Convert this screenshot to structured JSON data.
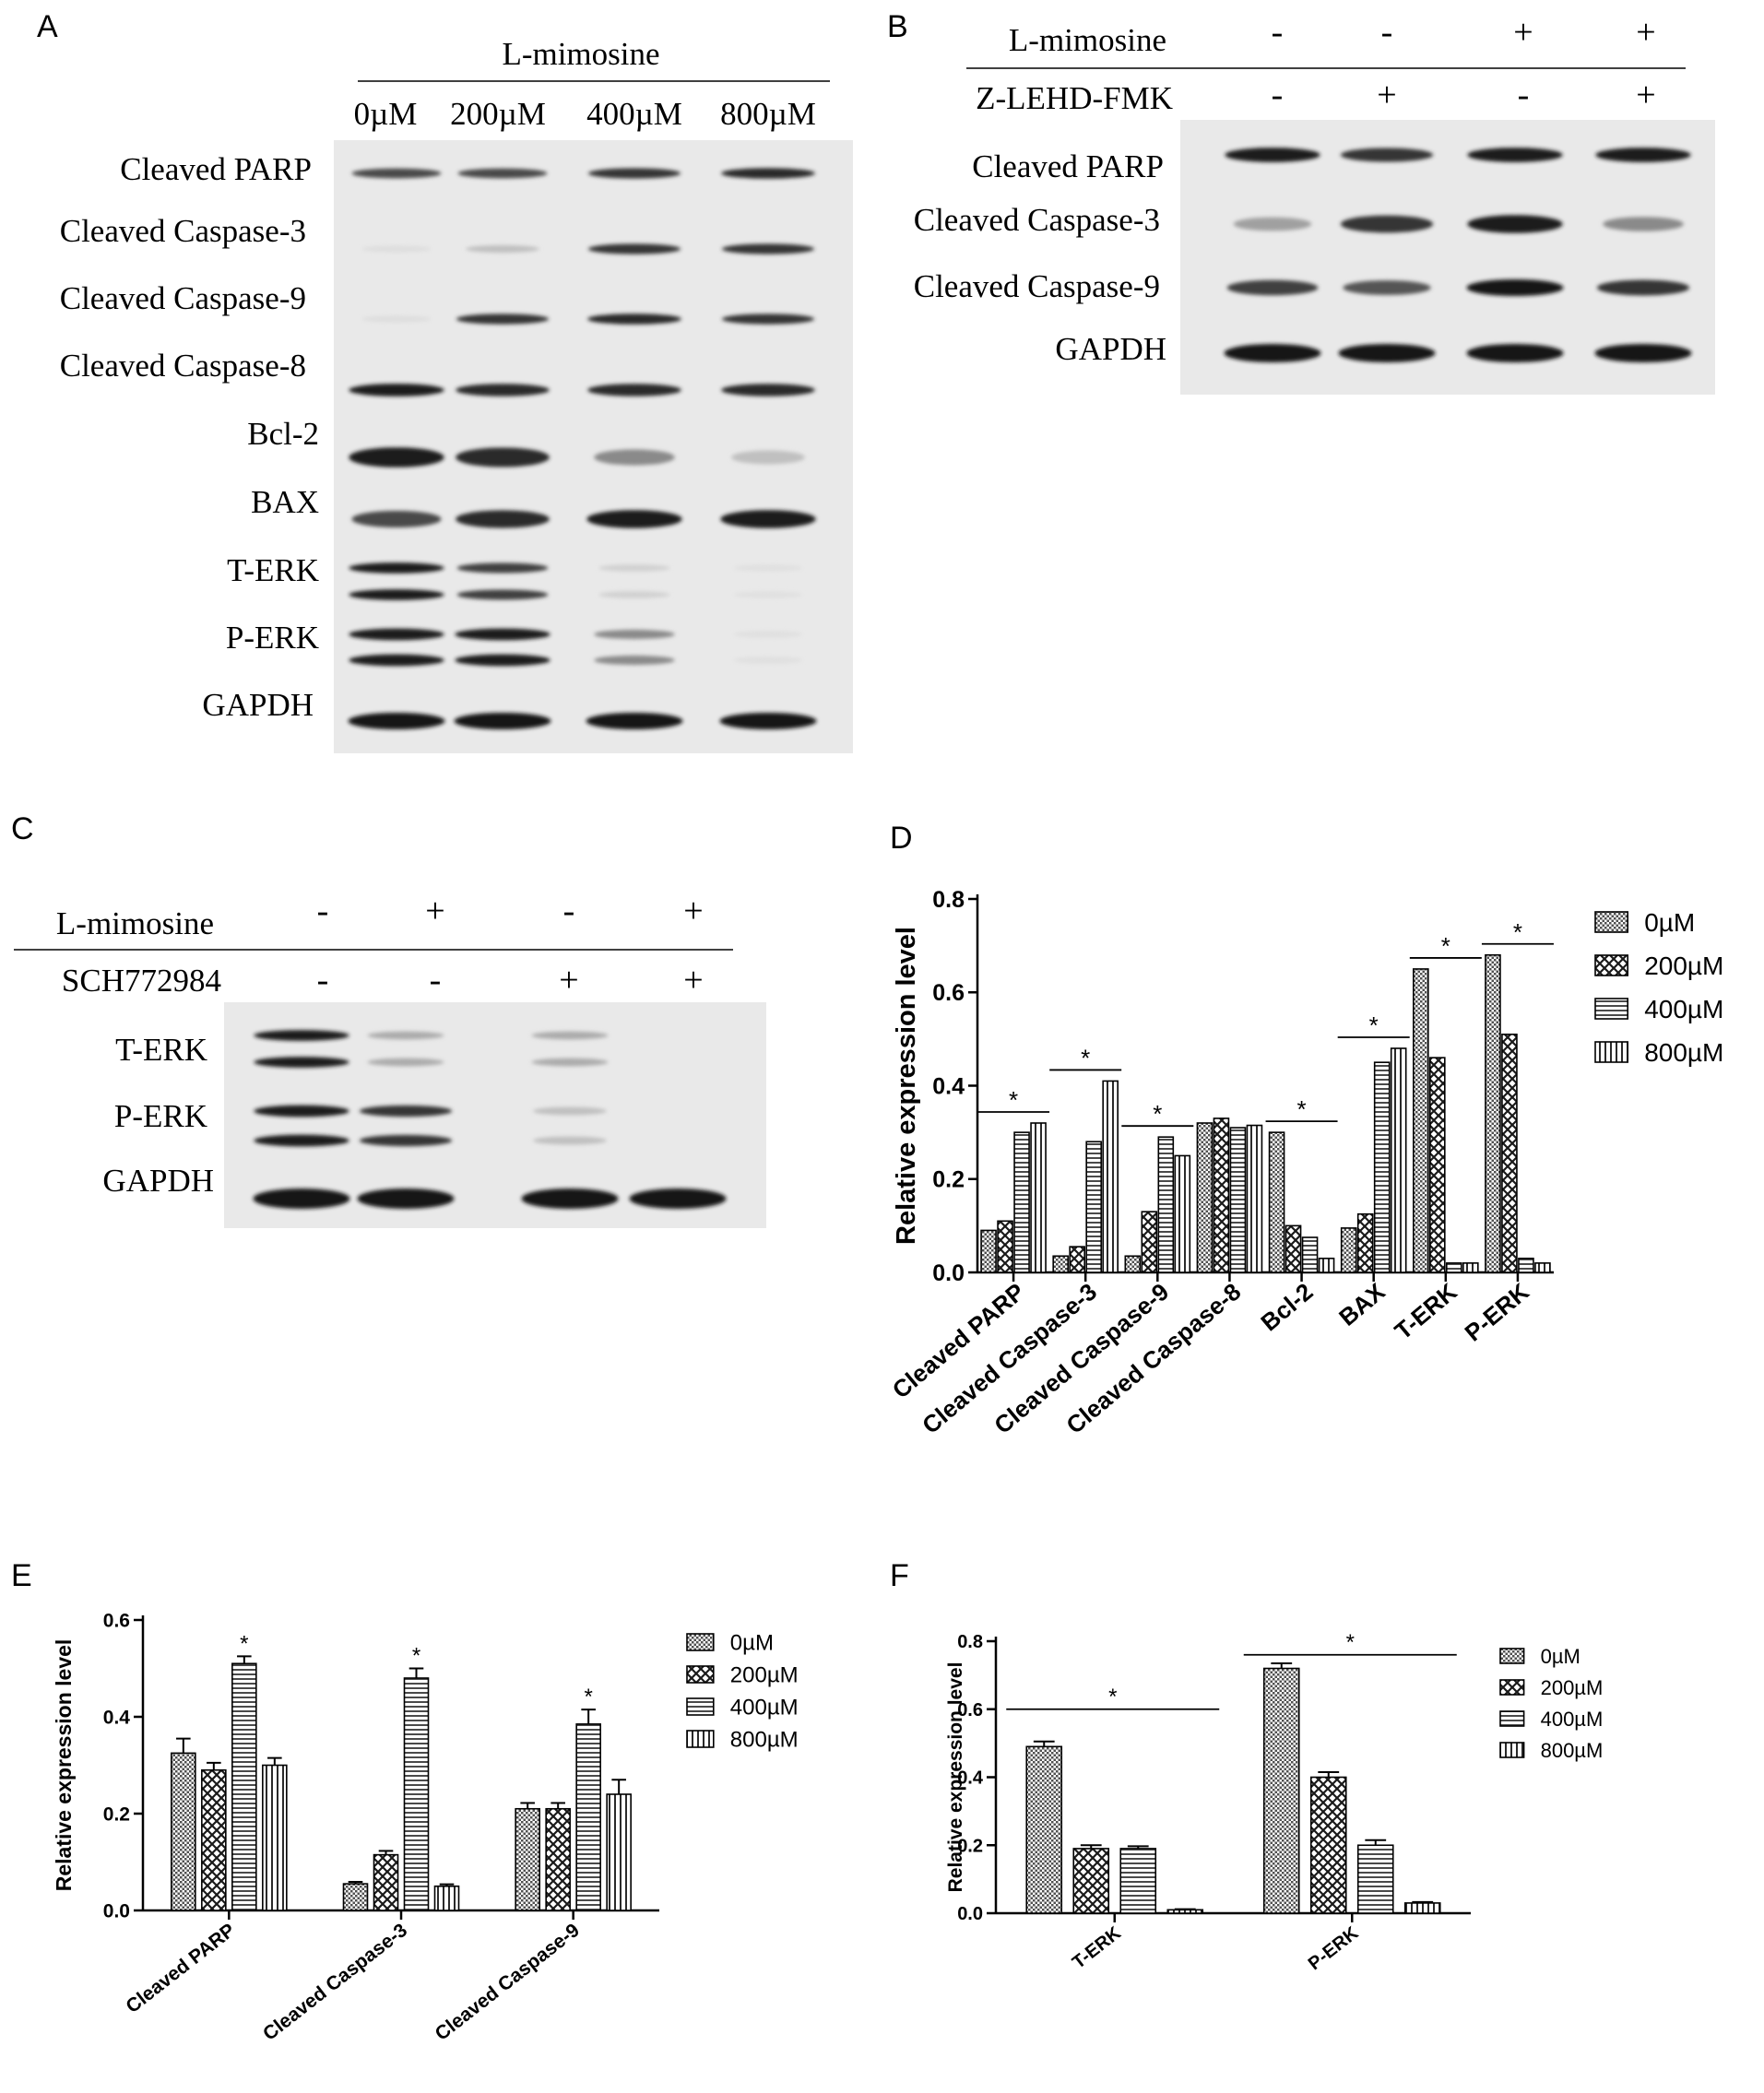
{
  "panels": {
    "A": {
      "letter": "A",
      "treatment": "L-mimosine",
      "lanes": [
        "0µM",
        "200µM",
        "400µM",
        "800µM"
      ],
      "bands": [
        "Cleaved  PARP",
        "Cleaved Caspase-3",
        "Cleaved Caspase-9",
        "Cleaved Caspase-8",
        "Bcl-2",
        "BAX",
        "T-ERK",
        "P-ERK",
        "GAPDH"
      ]
    },
    "B": {
      "letter": "B",
      "rows": [
        {
          "label": "L-mimosine",
          "signs": [
            "-",
            "-",
            "+",
            "+"
          ]
        },
        {
          "label": "Z-LEHD-FMK",
          "signs": [
            "-",
            "+",
            "-",
            "+"
          ]
        }
      ],
      "bands": [
        "Cleaved  PARP",
        "Cleaved Caspase-3",
        "Cleaved Caspase-9",
        "GAPDH"
      ]
    },
    "C": {
      "letter": "C",
      "rows": [
        {
          "label": "L-mimosine",
          "signs": [
            "-",
            "+",
            "-",
            "+"
          ]
        },
        {
          "label": "SCH772984",
          "signs": [
            "-",
            "-",
            "+",
            "+"
          ]
        }
      ],
      "bands": [
        "T-ERK",
        "P-ERK",
        "GAPDH"
      ]
    },
    "D": {
      "letter": "D"
    },
    "E": {
      "letter": "E"
    },
    "F": {
      "letter": "F"
    }
  },
  "chart_data": [
    {
      "panel": "D",
      "type": "bar",
      "ylabel": "Relative expression level",
      "ylim": [
        0,
        0.8
      ],
      "yticks": [
        "0.0",
        "0.2",
        "0.4",
        "0.6",
        "0.8"
      ],
      "categories": [
        "Cleaved PARP",
        "Cleaved Caspase-3",
        "Cleaved Caspase-9",
        "Cleaved Caspase-8",
        "Bcl-2",
        "BAX",
        "T-ERK",
        "P-ERK"
      ],
      "series": [
        {
          "name": "0µM",
          "values": [
            0.09,
            0.035,
            0.035,
            0.32,
            0.3,
            0.095,
            0.65,
            0.68
          ]
        },
        {
          "name": "200µM",
          "values": [
            0.11,
            0.055,
            0.13,
            0.33,
            0.1,
            0.125,
            0.46,
            0.51
          ]
        },
        {
          "name": "400µM",
          "values": [
            0.3,
            0.28,
            0.29,
            0.31,
            0.075,
            0.45,
            0.02,
            0.03
          ]
        },
        {
          "name": "800µM",
          "values": [
            0.32,
            0.41,
            0.25,
            0.315,
            0.03,
            0.48,
            0.02,
            0.02
          ]
        }
      ],
      "significance": [
        "*",
        "*",
        "*",
        "",
        "*",
        "*",
        "*",
        "*"
      ],
      "legend": "right"
    },
    {
      "panel": "E",
      "type": "bar",
      "ylabel": "Relative expression level",
      "ylim": [
        0,
        0.6
      ],
      "yticks": [
        "0.0",
        "0.2",
        "0.4",
        "0.6"
      ],
      "categories": [
        "Cleaved PARP",
        "Cleaved Caspase-3",
        "Cleaved Caspase-9"
      ],
      "series": [
        {
          "name": "0µM",
          "values": [
            0.325,
            0.055,
            0.21
          ],
          "errors": [
            0.03,
            0.004,
            0.012
          ]
        },
        {
          "name": "200µM",
          "values": [
            0.29,
            0.115,
            0.21
          ],
          "errors": [
            0.015,
            0.008,
            0.012
          ]
        },
        {
          "name": "400µM",
          "values": [
            0.51,
            0.48,
            0.385
          ],
          "errors": [
            0.015,
            0.02,
            0.03
          ]
        },
        {
          "name": "800µM",
          "values": [
            0.3,
            0.05,
            0.24
          ],
          "errors": [
            0.015,
            0.004,
            0.03
          ]
        }
      ],
      "significance": [
        "*",
        "*",
        "*"
      ],
      "legend": "right"
    },
    {
      "panel": "F",
      "type": "bar",
      "ylabel": "Relative expression level",
      "ylim": [
        0,
        0.8
      ],
      "yticks": [
        "0.0",
        "0.2",
        "0.4",
        "0.6",
        "0.8"
      ],
      "categories": [
        "T-ERK",
        "P-ERK"
      ],
      "series": [
        {
          "name": "0µM",
          "values": [
            0.49,
            0.72
          ],
          "errors": [
            0.015,
            0.015
          ]
        },
        {
          "name": "200µM",
          "values": [
            0.19,
            0.4
          ],
          "errors": [
            0.01,
            0.015
          ]
        },
        {
          "name": "400µM",
          "values": [
            0.19,
            0.2
          ],
          "errors": [
            0.007,
            0.015
          ]
        },
        {
          "name": "800µM",
          "values": [
            0.01,
            0.03
          ],
          "errors": [
            0.002,
            0.003
          ]
        }
      ],
      "significance": [
        "*",
        "*"
      ],
      "legend": "right"
    }
  ]
}
